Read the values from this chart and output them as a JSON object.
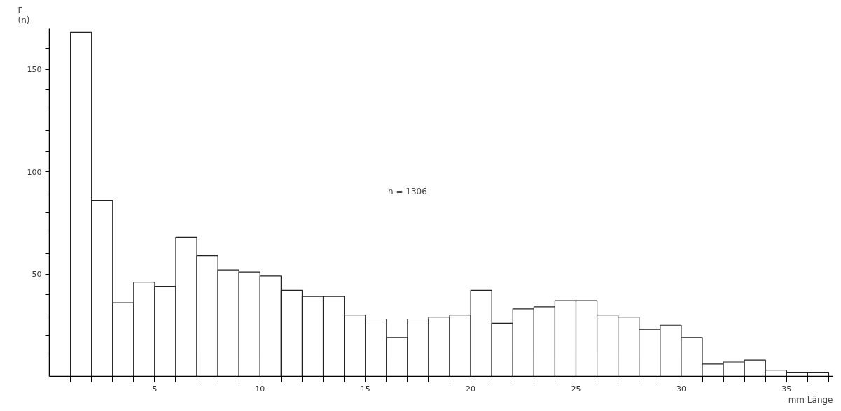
{
  "chart_data": {
    "type": "histogram",
    "ylabel": "F\n(n)",
    "xlabel": "mm Länge",
    "annotations": [
      "n = 1306"
    ],
    "bins": [
      1,
      2,
      3,
      4,
      5,
      6,
      7,
      8,
      9,
      10,
      11,
      12,
      13,
      14,
      15,
      16,
      17,
      18,
      19,
      20,
      21,
      22,
      23,
      24,
      25,
      26,
      27,
      28,
      29,
      30,
      31,
      32,
      33,
      34,
      35,
      36,
      37
    ],
    "values": [
      168,
      86,
      36,
      46,
      44,
      68,
      59,
      52,
      51,
      49,
      42,
      39,
      39,
      30,
      28,
      19,
      28,
      29,
      30,
      42,
      26,
      33,
      34,
      37,
      37,
      30,
      29,
      23,
      25,
      19,
      6,
      7,
      8,
      3,
      2,
      2
    ],
    "color": "#ffffff",
    "xlim": [
      0,
      37.2
    ],
    "ylim": [
      0,
      170
    ],
    "xticks": [
      {
        "value": 1,
        "label": null
      },
      {
        "value": 2,
        "label": null
      },
      {
        "value": 3,
        "label": null
      },
      {
        "value": 4,
        "label": null
      },
      5,
      {
        "value": 6,
        "label": null
      },
      {
        "value": 7,
        "label": null
      },
      {
        "value": 8,
        "label": null
      },
      {
        "value": 9,
        "label": null
      },
      10,
      {
        "value": 11,
        "label": null
      },
      {
        "value": 12,
        "label": null
      },
      {
        "value": 13,
        "label": null
      },
      {
        "value": 14,
        "label": null
      },
      15,
      {
        "value": 16,
        "label": null
      },
      {
        "value": 17,
        "label": null
      },
      {
        "value": 18,
        "label": null
      },
      {
        "value": 19,
        "label": null
      },
      20,
      {
        "value": 21,
        "label": null
      },
      {
        "value": 22,
        "label": null
      },
      {
        "value": 23,
        "label": null
      },
      {
        "value": 24,
        "label": null
      },
      25,
      {
        "value": 26,
        "label": null
      },
      {
        "value": 27,
        "label": null
      },
      {
        "value": 28,
        "label": null
      },
      {
        "value": 29,
        "label": null
      },
      30,
      {
        "value": 31,
        "label": null
      },
      {
        "value": 32,
        "label": null
      },
      {
        "value": 33,
        "label": null
      },
      {
        "value": 34,
        "label": null
      },
      35,
      {
        "value": 36,
        "label": null
      },
      {
        "value": 37,
        "label": null
      }
    ],
    "yticks": [
      {
        "value": 10,
        "label": null
      },
      {
        "value": 20,
        "label": null
      },
      {
        "value": 30,
        "label": null
      },
      {
        "value": 40,
        "label": null
      },
      50,
      {
        "value": 60,
        "label": null
      },
      {
        "value": 70,
        "label": null
      },
      {
        "value": 80,
        "label": null
      },
      {
        "value": 90,
        "label": null
      },
      100,
      {
        "value": 110,
        "label": null
      },
      {
        "value": 120,
        "label": null
      },
      {
        "value": 130,
        "label": null
      },
      {
        "value": 140,
        "label": null
      },
      150,
      {
        "value": 160,
        "label": null
      }
    ],
    "grid": false
  }
}
